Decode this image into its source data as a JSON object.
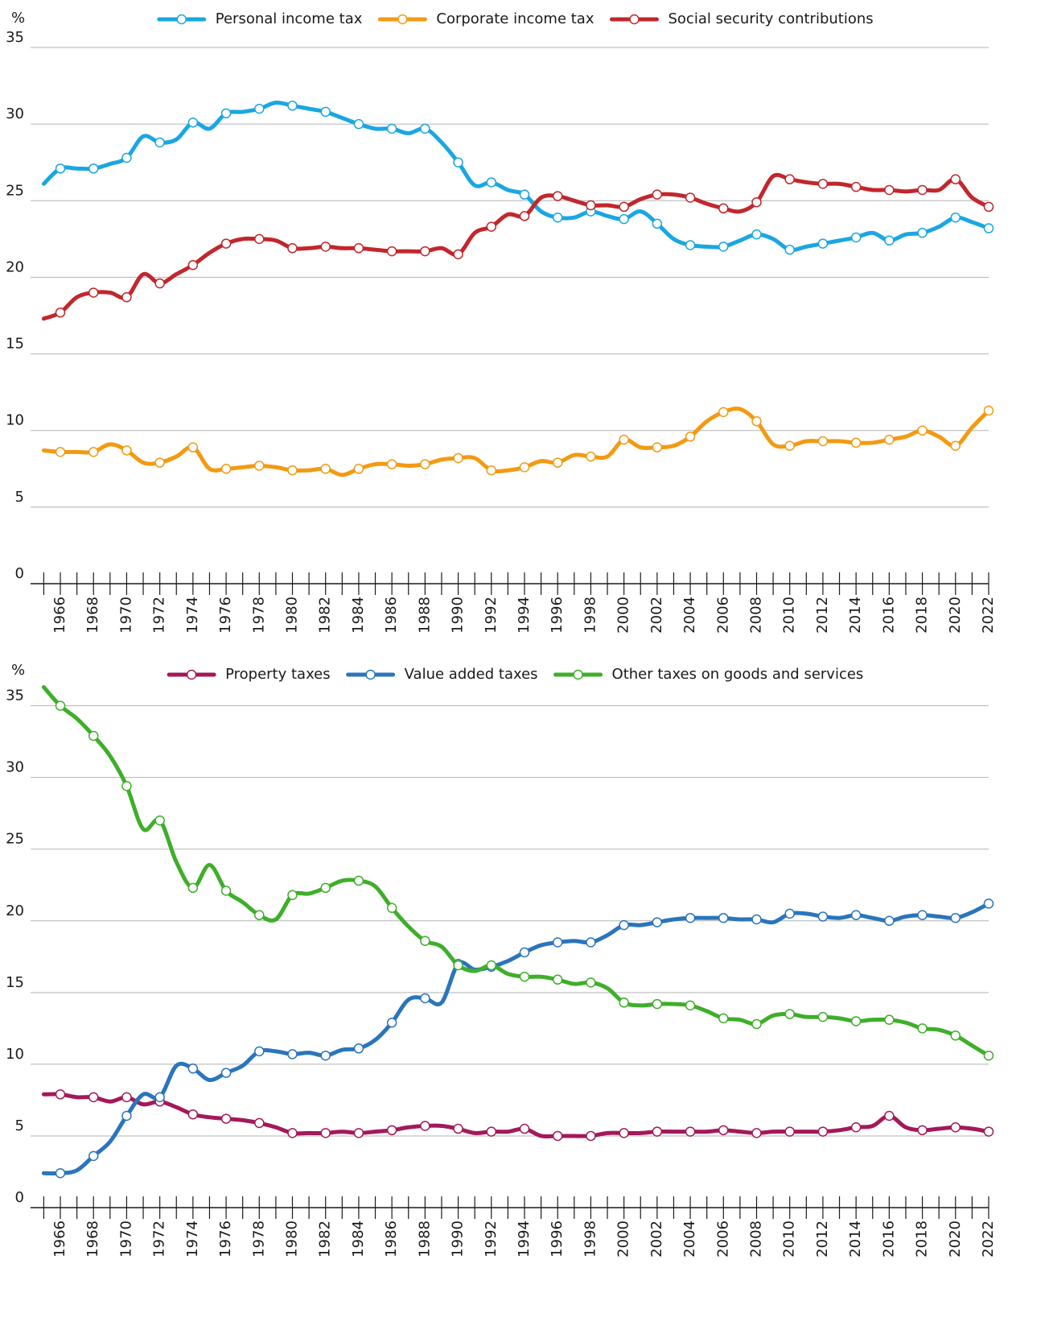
{
  "chart_data": [
    {
      "type": "line",
      "y_label": "%",
      "x": [
        1965,
        1966,
        1967,
        1968,
        1969,
        1970,
        1971,
        1972,
        1973,
        1974,
        1975,
        1976,
        1977,
        1978,
        1979,
        1980,
        1981,
        1982,
        1983,
        1984,
        1985,
        1986,
        1987,
        1988,
        1989,
        1990,
        1991,
        1992,
        1993,
        1994,
        1995,
        1996,
        1997,
        1998,
        1999,
        2000,
        2001,
        2002,
        2003,
        2004,
        2005,
        2006,
        2007,
        2008,
        2009,
        2010,
        2011,
        2012,
        2013,
        2014,
        2015,
        2016,
        2017,
        2018,
        2019,
        2020,
        2021,
        2022
      ],
      "xlim": [
        1965,
        2022
      ],
      "xticks": [
        1966,
        1968,
        1970,
        1972,
        1974,
        1976,
        1978,
        1980,
        1982,
        1984,
        1986,
        1988,
        1990,
        1992,
        1994,
        1996,
        1998,
        2000,
        2002,
        2004,
        2006,
        2008,
        2010,
        2012,
        2014,
        2016,
        2018,
        2020,
        2022
      ],
      "ylim": [
        0,
        35
      ],
      "yticks": [
        0,
        5,
        10,
        15,
        20,
        25,
        30,
        35
      ],
      "grid": true,
      "legend": "top",
      "series": [
        {
          "name": "Personal income tax",
          "color": "#1aa7e1",
          "values": [
            26.1,
            27.1,
            27.1,
            27.1,
            27.4,
            27.8,
            29.2,
            28.8,
            29.0,
            30.1,
            29.7,
            30.7,
            30.8,
            31.0,
            31.4,
            31.2,
            31.0,
            30.8,
            30.4,
            30.0,
            29.7,
            29.7,
            29.4,
            29.7,
            28.8,
            27.5,
            26.0,
            26.2,
            25.7,
            25.4,
            24.3,
            23.9,
            23.9,
            24.3,
            24.0,
            23.8,
            24.3,
            23.5,
            22.5,
            22.1,
            22.0,
            22.0,
            22.4,
            22.8,
            22.5,
            21.8,
            22.0,
            22.2,
            22.4,
            22.6,
            22.9,
            22.4,
            22.8,
            22.9,
            23.3,
            23.9,
            23.6,
            23.2
          ]
        },
        {
          "name": "Corporate income tax",
          "color": "#f39a12",
          "values": [
            8.7,
            8.6,
            8.6,
            8.6,
            9.1,
            8.7,
            7.9,
            7.9,
            8.3,
            8.9,
            7.5,
            7.5,
            7.6,
            7.7,
            7.6,
            7.4,
            7.4,
            7.5,
            7.1,
            7.5,
            7.8,
            7.8,
            7.7,
            7.8,
            8.1,
            8.2,
            8.2,
            7.4,
            7.4,
            7.6,
            8.0,
            7.9,
            8.4,
            8.3,
            8.3,
            9.4,
            8.9,
            8.9,
            9.0,
            9.6,
            10.6,
            11.2,
            11.4,
            10.6,
            9.1,
            9.0,
            9.3,
            9.3,
            9.3,
            9.2,
            9.2,
            9.4,
            9.6,
            10.0,
            9.6,
            9.0,
            10.2,
            11.3
          ]
        },
        {
          "name": "Social security contributions",
          "color": "#c1272d",
          "values": [
            17.3,
            17.7,
            18.7,
            19.0,
            19.0,
            18.7,
            20.2,
            19.6,
            20.2,
            20.8,
            21.6,
            22.2,
            22.5,
            22.5,
            22.4,
            21.9,
            21.9,
            22.0,
            21.9,
            21.9,
            21.8,
            21.7,
            21.7,
            21.7,
            21.9,
            21.5,
            22.9,
            23.3,
            24.1,
            24.0,
            25.2,
            25.3,
            25.0,
            24.7,
            24.7,
            24.6,
            25.1,
            25.4,
            25.4,
            25.2,
            24.8,
            24.5,
            24.3,
            24.9,
            26.6,
            26.4,
            26.2,
            26.1,
            26.1,
            25.9,
            25.7,
            25.7,
            25.6,
            25.7,
            25.7,
            26.4,
            25.2,
            24.6
          ]
        }
      ]
    },
    {
      "type": "line",
      "y_label": "%",
      "x": [
        1965,
        1966,
        1967,
        1968,
        1969,
        1970,
        1971,
        1972,
        1973,
        1974,
        1975,
        1976,
        1977,
        1978,
        1979,
        1980,
        1981,
        1982,
        1983,
        1984,
        1985,
        1986,
        1987,
        1988,
        1989,
        1990,
        1991,
        1992,
        1993,
        1994,
        1995,
        1996,
        1997,
        1998,
        1999,
        2000,
        2001,
        2002,
        2003,
        2004,
        2005,
        2006,
        2007,
        2008,
        2009,
        2010,
        2011,
        2012,
        2013,
        2014,
        2015,
        2016,
        2017,
        2018,
        2019,
        2020,
        2021,
        2022
      ],
      "xlim": [
        1965,
        2022
      ],
      "xticks": [
        1966,
        1968,
        1970,
        1972,
        1974,
        1976,
        1978,
        1980,
        1982,
        1984,
        1986,
        1988,
        1990,
        1992,
        1994,
        1996,
        1998,
        2000,
        2002,
        2004,
        2006,
        2008,
        2010,
        2012,
        2014,
        2016,
        2018,
        2020,
        2022
      ],
      "ylim": [
        0,
        37
      ],
      "yticks": [
        0,
        5,
        10,
        15,
        20,
        25,
        30,
        35
      ],
      "grid": true,
      "legend": "top",
      "series": [
        {
          "name": "Property taxes",
          "color": "#a3195b",
          "values": [
            7.9,
            7.9,
            7.7,
            7.7,
            7.4,
            7.7,
            7.2,
            7.4,
            7.0,
            6.5,
            6.3,
            6.2,
            6.1,
            5.9,
            5.6,
            5.2,
            5.2,
            5.2,
            5.3,
            5.2,
            5.3,
            5.4,
            5.6,
            5.7,
            5.7,
            5.5,
            5.2,
            5.3,
            5.3,
            5.5,
            5.0,
            5.0,
            5.0,
            5.0,
            5.2,
            5.2,
            5.2,
            5.3,
            5.3,
            5.3,
            5.3,
            5.4,
            5.3,
            5.2,
            5.3,
            5.3,
            5.3,
            5.3,
            5.4,
            5.6,
            5.7,
            6.4,
            5.6,
            5.4,
            5.5,
            5.6,
            5.5,
            5.3
          ]
        },
        {
          "name": "Value added taxes",
          "color": "#2a75bb",
          "values": [
            2.4,
            2.4,
            2.6,
            3.6,
            4.6,
            6.4,
            7.9,
            7.7,
            9.9,
            9.7,
            8.9,
            9.4,
            9.9,
            10.9,
            10.9,
            10.7,
            10.8,
            10.6,
            11.0,
            11.1,
            11.7,
            12.9,
            14.5,
            14.6,
            14.3,
            17.0,
            16.6,
            16.8,
            17.2,
            17.8,
            18.3,
            18.5,
            18.6,
            18.5,
            19.0,
            19.7,
            19.7,
            19.9,
            20.1,
            20.2,
            20.2,
            20.2,
            20.1,
            20.1,
            19.9,
            20.5,
            20.5,
            20.3,
            20.2,
            20.4,
            20.2,
            20.0,
            20.3,
            20.4,
            20.3,
            20.2,
            20.6,
            21.2
          ]
        },
        {
          "name": "Other taxes on goods and services",
          "color": "#3fae2a",
          "values": [
            36.3,
            35.0,
            34.1,
            32.9,
            31.5,
            29.4,
            26.4,
            27.0,
            24.1,
            22.3,
            23.9,
            22.1,
            21.3,
            20.4,
            20.1,
            21.8,
            21.9,
            22.3,
            22.8,
            22.8,
            22.4,
            20.9,
            19.6,
            18.6,
            18.2,
            16.9,
            16.5,
            16.9,
            16.3,
            16.1,
            16.1,
            15.9,
            15.6,
            15.7,
            15.3,
            14.3,
            14.1,
            14.2,
            14.2,
            14.1,
            13.7,
            13.2,
            13.1,
            12.8,
            13.4,
            13.5,
            13.3,
            13.3,
            13.2,
            13.0,
            13.1,
            13.1,
            12.9,
            12.5,
            12.4,
            12.0,
            11.3,
            10.6
          ]
        }
      ]
    }
  ]
}
